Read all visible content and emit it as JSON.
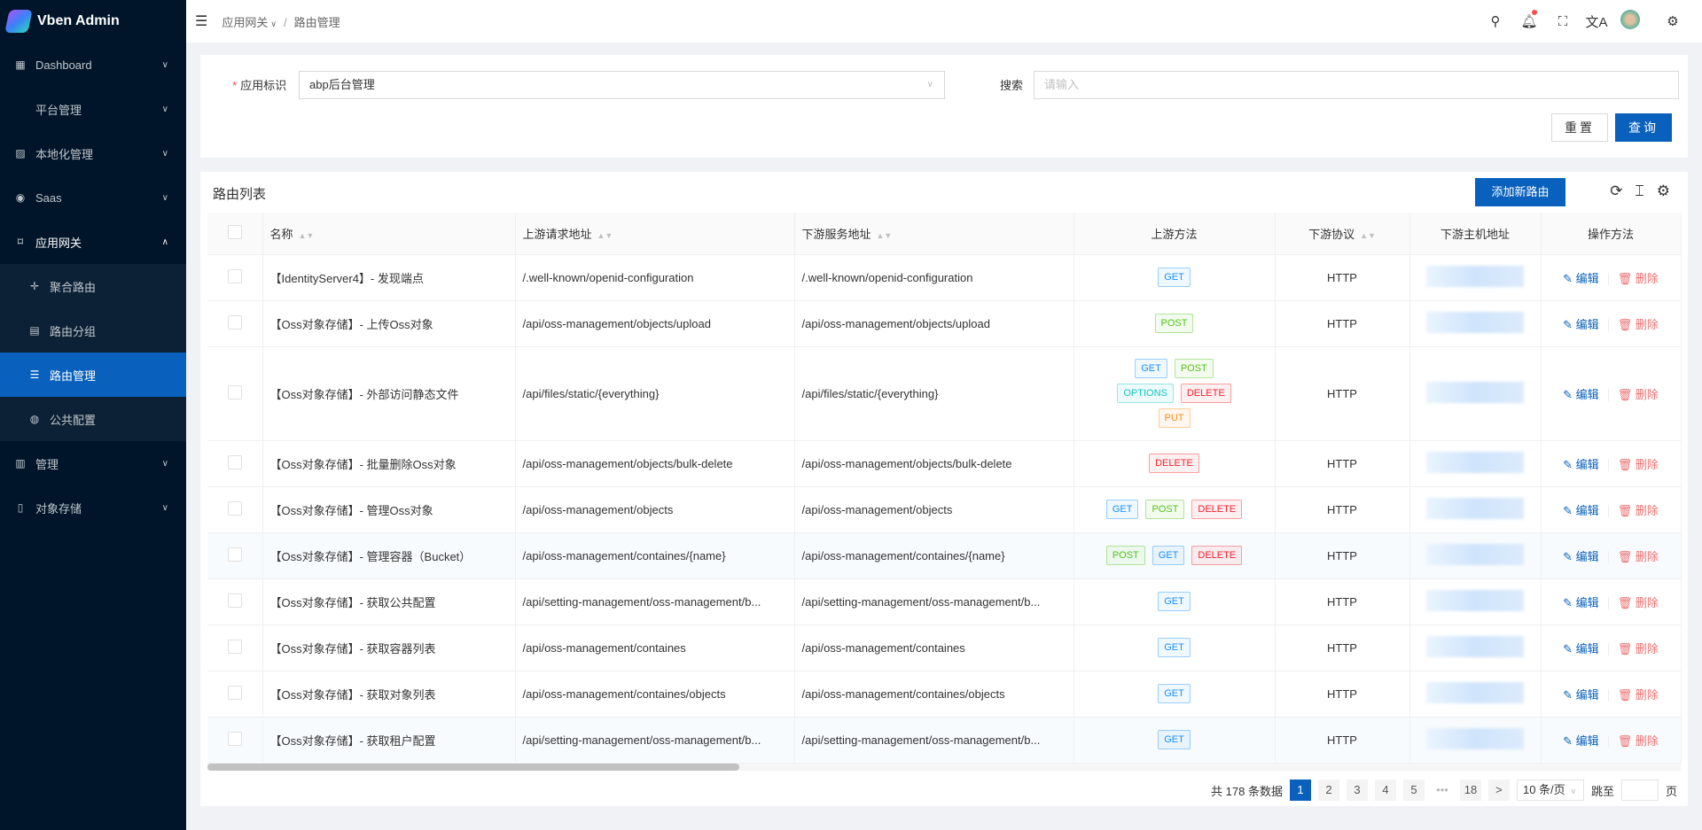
{
  "app": {
    "title": "Vben Admin"
  },
  "sidebar": {
    "items": [
      {
        "label": "Dashboard",
        "icon": "dashboard-icon"
      },
      {
        "label": "平台管理",
        "icon": ""
      },
      {
        "label": "本地化管理",
        "icon": "localization-icon"
      },
      {
        "label": "Saas",
        "icon": "saas-icon"
      },
      {
        "label": "应用网关",
        "icon": "gateway-icon",
        "open": true,
        "children": [
          {
            "label": "聚合路由",
            "icon": "move-icon"
          },
          {
            "label": "路由分组",
            "icon": "group-icon"
          },
          {
            "label": "路由管理",
            "icon": "list-icon",
            "active": true
          },
          {
            "label": "公共配置",
            "icon": "globe-icon"
          }
        ]
      },
      {
        "label": "管理",
        "icon": "manage-icon"
      },
      {
        "label": "对象存储",
        "icon": "file-icon"
      }
    ]
  },
  "header": {
    "breadcrumb": [
      "应用网关",
      "路由管理"
    ]
  },
  "filter": {
    "app_label": "应用标识",
    "app_value": "abp后台管理",
    "search_label": "搜索",
    "search_placeholder": "请输入",
    "reset": "重置",
    "query": "查询"
  },
  "table": {
    "title": "路由列表",
    "add": "添加新路由",
    "columns": [
      "名称",
      "上游请求地址",
      "下游服务地址",
      "上游方法",
      "下游协议",
      "下游主机地址",
      "操作方法"
    ],
    "edit": "编辑",
    "delete": "删除",
    "rows": [
      {
        "name": "【IdentityServer4】- 发现端点",
        "up": "/.well-known/openid-configuration",
        "down": "/.well-known/openid-configuration",
        "methods": [
          "GET"
        ],
        "proto": "HTTP"
      },
      {
        "name": "【Oss对象存储】- 上传Oss对象",
        "up": "/api/oss-management/objects/upload",
        "down": "/api/oss-management/objects/upload",
        "methods": [
          "POST"
        ],
        "proto": "HTTP"
      },
      {
        "name": "【Oss对象存储】- 外部访问静态文件",
        "up": "/api/files/static/{everything}",
        "down": "/api/files/static/{everything}",
        "methods": [
          "GET",
          "POST",
          "OPTIONS",
          "DELETE",
          "PUT"
        ],
        "proto": "HTTP"
      },
      {
        "name": "【Oss对象存储】- 批量删除Oss对象",
        "up": "/api/oss-management/objects/bulk-delete",
        "down": "/api/oss-management/objects/bulk-delete",
        "methods": [
          "DELETE"
        ],
        "proto": "HTTP"
      },
      {
        "name": "【Oss对象存储】- 管理Oss对象",
        "up": "/api/oss-management/objects",
        "down": "/api/oss-management/objects",
        "methods": [
          "GET",
          "POST",
          "DELETE"
        ],
        "proto": "HTTP"
      },
      {
        "name": "【Oss对象存储】- 管理容器（Bucket）",
        "up": "/api/oss-management/containes/{name}",
        "down": "/api/oss-management/containes/{name}",
        "methods": [
          "POST",
          "GET",
          "DELETE"
        ],
        "proto": "HTTP"
      },
      {
        "name": "【Oss对象存储】- 获取公共配置",
        "up": "/api/setting-management/oss-management/b...",
        "down": "/api/setting-management/oss-management/b...",
        "methods": [
          "GET"
        ],
        "proto": "HTTP"
      },
      {
        "name": "【Oss对象存储】- 获取容器列表",
        "up": "/api/oss-management/containes",
        "down": "/api/oss-management/containes",
        "methods": [
          "GET"
        ],
        "proto": "HTTP"
      },
      {
        "name": "【Oss对象存储】- 获取对象列表",
        "up": "/api/oss-management/containes/objects",
        "down": "/api/oss-management/containes/objects",
        "methods": [
          "GET"
        ],
        "proto": "HTTP"
      },
      {
        "name": "【Oss对象存储】- 获取租户配置",
        "up": "/api/setting-management/oss-management/b...",
        "down": "/api/setting-management/oss-management/b...",
        "methods": [
          "GET"
        ],
        "proto": "HTTP"
      }
    ]
  },
  "method_colors": {
    "GET": "#1890ff",
    "POST": "#52c41a",
    "OPTIONS": "#13c2c2",
    "DELETE": "#f5222d",
    "PUT": "#fa8c16"
  },
  "pagination": {
    "total": "共 178 条数据",
    "pages": [
      "1",
      "2",
      "3",
      "4",
      "5",
      "•••",
      "18"
    ],
    "current": "1",
    "next": ">",
    "page_size": "10 条/页",
    "jump_label": "跳至",
    "page_unit": "页"
  }
}
